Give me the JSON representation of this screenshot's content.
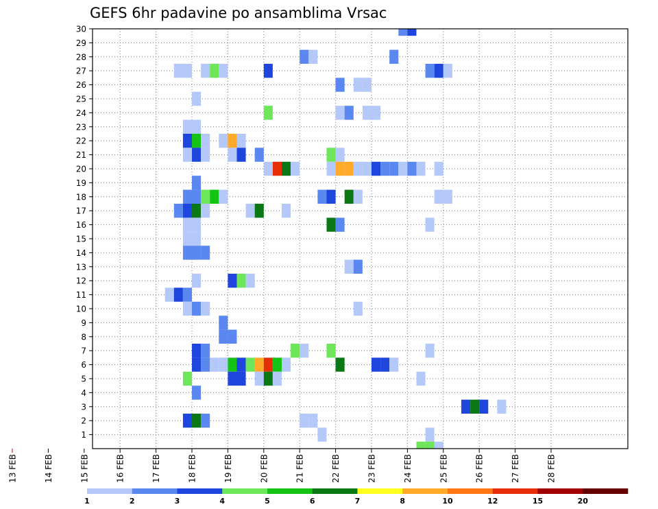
{
  "chart_data": {
    "type": "heatmap",
    "title": "GEFS 6hr padavine po ansamblima Vrsac",
    "x_categories": [
      "13 FEB",
      "14 FEB",
      "15 FEB",
      "16 FEB",
      "17 FEB",
      "18 FEB",
      "19 FEB",
      "20 FEB",
      "21 FEB",
      "22 FEB",
      "23 FEB",
      "24 FEB",
      "25 FEB",
      "26 FEB",
      "27 FEB",
      "28 FEB"
    ],
    "y_ticks": [
      1,
      2,
      3,
      4,
      5,
      6,
      7,
      8,
      9,
      10,
      11,
      12,
      13,
      14,
      15,
      16,
      17,
      18,
      19,
      20,
      21,
      22,
      23,
      24,
      25,
      26,
      27,
      28,
      29,
      30
    ],
    "ylim": [
      0,
      30
    ],
    "x_step_hours": 6,
    "grid": true,
    "colorbar": {
      "labels": [
        "1",
        "2",
        "3",
        "4",
        "5",
        "6",
        "7",
        "8",
        "10",
        "12",
        "15",
        "20"
      ],
      "colors": [
        "#b4c8fa",
        "#5a87f0",
        "#1e46dc",
        "#6ee65a",
        "#14c314",
        "#0a7814",
        "#ffff1e",
        "#ffaa28",
        "#ff7814",
        "#e62d0a",
        "#a00000",
        "#640000"
      ]
    },
    "cells": [
      {
        "member": 30,
        "step": 23,
        "level": 1
      },
      {
        "member": 30,
        "step": 24,
        "level": 2
      },
      {
        "member": 28,
        "step": 12,
        "level": 1
      },
      {
        "member": 28,
        "step": 13,
        "level": 0
      },
      {
        "member": 28,
        "step": 22,
        "level": 1
      },
      {
        "member": 28,
        "step": 60,
        "level": 1
      },
      {
        "member": 27,
        "step": -2,
        "level": 0
      },
      {
        "member": 27,
        "step": -1,
        "level": 0
      },
      {
        "member": 27,
        "step": 1,
        "level": 0
      },
      {
        "member": 27,
        "step": 2,
        "level": 3
      },
      {
        "member": 27,
        "step": 3,
        "level": 0
      },
      {
        "member": 27,
        "step": 8,
        "level": 2
      },
      {
        "member": 27,
        "step": 26,
        "level": 1
      },
      {
        "member": 27,
        "step": 27,
        "level": 2
      },
      {
        "member": 27,
        "step": 28,
        "level": 0
      },
      {
        "member": 26,
        "step": 16,
        "level": 1
      },
      {
        "member": 26,
        "step": 18,
        "level": 0
      },
      {
        "member": 26,
        "step": 19,
        "level": 0
      },
      {
        "member": 25,
        "step": 0,
        "level": 0
      },
      {
        "member": 24,
        "step": 8,
        "level": 3
      },
      {
        "member": 24,
        "step": 16,
        "level": 0
      },
      {
        "member": 24,
        "step": 17,
        "level": 1
      },
      {
        "member": 24,
        "step": 19,
        "level": 0
      },
      {
        "member": 24,
        "step": 20,
        "level": 0
      },
      {
        "member": 23,
        "step": -1,
        "level": 0
      },
      {
        "member": 23,
        "step": 0,
        "level": 0
      },
      {
        "member": 22,
        "step": -1,
        "level": 2
      },
      {
        "member": 22,
        "step": 0,
        "level": 4
      },
      {
        "member": 22,
        "step": 1,
        "level": 0
      },
      {
        "member": 22,
        "step": 3,
        "level": 0
      },
      {
        "member": 22,
        "step": 4,
        "level": 7
      },
      {
        "member": 22,
        "step": 5,
        "level": 0
      },
      {
        "member": 21,
        "step": -1,
        "level": 0
      },
      {
        "member": 21,
        "step": 0,
        "level": 2
      },
      {
        "member": 21,
        "step": 1,
        "level": 0
      },
      {
        "member": 21,
        "step": 4,
        "level": 0
      },
      {
        "member": 21,
        "step": 5,
        "level": 2
      },
      {
        "member": 21,
        "step": 7,
        "level": 1
      },
      {
        "member": 21,
        "step": 15,
        "level": 3
      },
      {
        "member": 21,
        "step": 16,
        "level": 0
      },
      {
        "member": 20,
        "step": 8,
        "level": 0
      },
      {
        "member": 20,
        "step": 9,
        "level": 9
      },
      {
        "member": 20,
        "step": 10,
        "level": 5
      },
      {
        "member": 20,
        "step": 11,
        "level": 0
      },
      {
        "member": 20,
        "step": 15,
        "level": 0
      },
      {
        "member": 20,
        "step": 16,
        "level": 7
      },
      {
        "member": 20,
        "step": 17,
        "level": 7
      },
      {
        "member": 20,
        "step": 18,
        "level": 0
      },
      {
        "member": 20,
        "step": 19,
        "level": 0
      },
      {
        "member": 20,
        "step": 20,
        "level": 2
      },
      {
        "member": 20,
        "step": 21,
        "level": 1
      },
      {
        "member": 20,
        "step": 22,
        "level": 1
      },
      {
        "member": 20,
        "step": 23,
        "level": 0
      },
      {
        "member": 20,
        "step": 24,
        "level": 1
      },
      {
        "member": 20,
        "step": 25,
        "level": 0
      },
      {
        "member": 20,
        "step": 27,
        "level": 0
      },
      {
        "member": 20,
        "step": 60,
        "level": 0
      },
      {
        "member": 19,
        "step": 0,
        "level": 1
      },
      {
        "member": 18,
        "step": -1,
        "level": 1
      },
      {
        "member": 18,
        "step": 0,
        "level": 1
      },
      {
        "member": 18,
        "step": 1,
        "level": 3
      },
      {
        "member": 18,
        "step": 2,
        "level": 4
      },
      {
        "member": 18,
        "step": 3,
        "level": 0
      },
      {
        "member": 18,
        "step": 14,
        "level": 1
      },
      {
        "member": 18,
        "step": 15,
        "level": 2
      },
      {
        "member": 18,
        "step": 17,
        "level": 5
      },
      {
        "member": 18,
        "step": 18,
        "level": 0
      },
      {
        "member": 18,
        "step": 27,
        "level": 0
      },
      {
        "member": 18,
        "step": 28,
        "level": 0
      },
      {
        "member": 17,
        "step": -2,
        "level": 1
      },
      {
        "member": 17,
        "step": -1,
        "level": 2
      },
      {
        "member": 17,
        "step": 0,
        "level": 5
      },
      {
        "member": 17,
        "step": 1,
        "level": 0
      },
      {
        "member": 17,
        "step": 6,
        "level": 0
      },
      {
        "member": 17,
        "step": 7,
        "level": 5
      },
      {
        "member": 17,
        "step": 10,
        "level": 0
      },
      {
        "member": 16,
        "step": -1,
        "level": 0
      },
      {
        "member": 16,
        "step": 0,
        "level": 0
      },
      {
        "member": 16,
        "step": 15,
        "level": 5
      },
      {
        "member": 16,
        "step": 16,
        "level": 1
      },
      {
        "member": 16,
        "step": 26,
        "level": 0
      },
      {
        "member": 15,
        "step": -1,
        "level": 0
      },
      {
        "member": 15,
        "step": 0,
        "level": 0
      },
      {
        "member": 14,
        "step": -1,
        "level": 1
      },
      {
        "member": 14,
        "step": 0,
        "level": 1
      },
      {
        "member": 14,
        "step": 1,
        "level": 1
      },
      {
        "member": 13,
        "step": 17,
        "level": 0
      },
      {
        "member": 13,
        "step": 18,
        "level": 1
      },
      {
        "member": 12,
        "step": 0,
        "level": 0
      },
      {
        "member": 12,
        "step": 4,
        "level": 2
      },
      {
        "member": 12,
        "step": 5,
        "level": 3
      },
      {
        "member": 12,
        "step": 6,
        "level": 0
      },
      {
        "member": 11,
        "step": -3,
        "level": 0
      },
      {
        "member": 11,
        "step": -2,
        "level": 2
      },
      {
        "member": 11,
        "step": -1,
        "level": 1
      },
      {
        "member": 10,
        "step": -1,
        "level": 0
      },
      {
        "member": 10,
        "step": 0,
        "level": 1
      },
      {
        "member": 10,
        "step": 1,
        "level": 0
      },
      {
        "member": 10,
        "step": 18,
        "level": 0
      },
      {
        "member": 9,
        "step": 3,
        "level": 1
      },
      {
        "member": 8,
        "step": 3,
        "level": 1
      },
      {
        "member": 8,
        "step": 4,
        "level": 1
      },
      {
        "member": 7,
        "step": 0,
        "level": 2
      },
      {
        "member": 7,
        "step": 1,
        "level": 1
      },
      {
        "member": 7,
        "step": 11,
        "level": 3
      },
      {
        "member": 7,
        "step": 12,
        "level": 0
      },
      {
        "member": 7,
        "step": 15,
        "level": 3
      },
      {
        "member": 7,
        "step": 26,
        "level": 0
      },
      {
        "member": 6,
        "step": 0,
        "level": 2
      },
      {
        "member": 6,
        "step": 1,
        "level": 1
      },
      {
        "member": 6,
        "step": 2,
        "level": 0
      },
      {
        "member": 6,
        "step": 3,
        "level": 0
      },
      {
        "member": 6,
        "step": 4,
        "level": 4
      },
      {
        "member": 6,
        "step": 5,
        "level": 2
      },
      {
        "member": 6,
        "step": 6,
        "level": 3
      },
      {
        "member": 6,
        "step": 7,
        "level": 7
      },
      {
        "member": 6,
        "step": 8,
        "level": 9
      },
      {
        "member": 6,
        "step": 9,
        "level": 4
      },
      {
        "member": 6,
        "step": 10,
        "level": 0
      },
      {
        "member": 6,
        "step": 16,
        "level": 5
      },
      {
        "member": 6,
        "step": 20,
        "level": 2
      },
      {
        "member": 6,
        "step": 21,
        "level": 2
      },
      {
        "member": 6,
        "step": 22,
        "level": 0
      },
      {
        "member": 5,
        "step": -1,
        "level": 3
      },
      {
        "member": 5,
        "step": 4,
        "level": 2
      },
      {
        "member": 5,
        "step": 5,
        "level": 2
      },
      {
        "member": 5,
        "step": 7,
        "level": 0
      },
      {
        "member": 5,
        "step": 8,
        "level": 5
      },
      {
        "member": 5,
        "step": 9,
        "level": 0
      },
      {
        "member": 5,
        "step": 25,
        "level": 0
      },
      {
        "member": 4,
        "step": 0,
        "level": 1
      },
      {
        "member": 3,
        "step": 30,
        "level": 2
      },
      {
        "member": 3,
        "step": 31,
        "level": 5
      },
      {
        "member": 3,
        "step": 32,
        "level": 2
      },
      {
        "member": 3,
        "step": 34,
        "level": 0
      },
      {
        "member": 2,
        "step": -1,
        "level": 2
      },
      {
        "member": 2,
        "step": 0,
        "level": 5
      },
      {
        "member": 2,
        "step": 1,
        "level": 1
      },
      {
        "member": 2,
        "step": 12,
        "level": 0
      },
      {
        "member": 2,
        "step": 13,
        "level": 0
      },
      {
        "member": 1,
        "step": 14,
        "level": 0
      },
      {
        "member": 1,
        "step": 26,
        "level": 0
      },
      {
        "member": 1,
        "step": 60,
        "level": 1
      },
      {
        "member": 0,
        "step": 25,
        "level": 3
      },
      {
        "member": 0,
        "step": 26,
        "level": 3
      },
      {
        "member": 0,
        "step": 27,
        "level": 0
      }
    ]
  }
}
